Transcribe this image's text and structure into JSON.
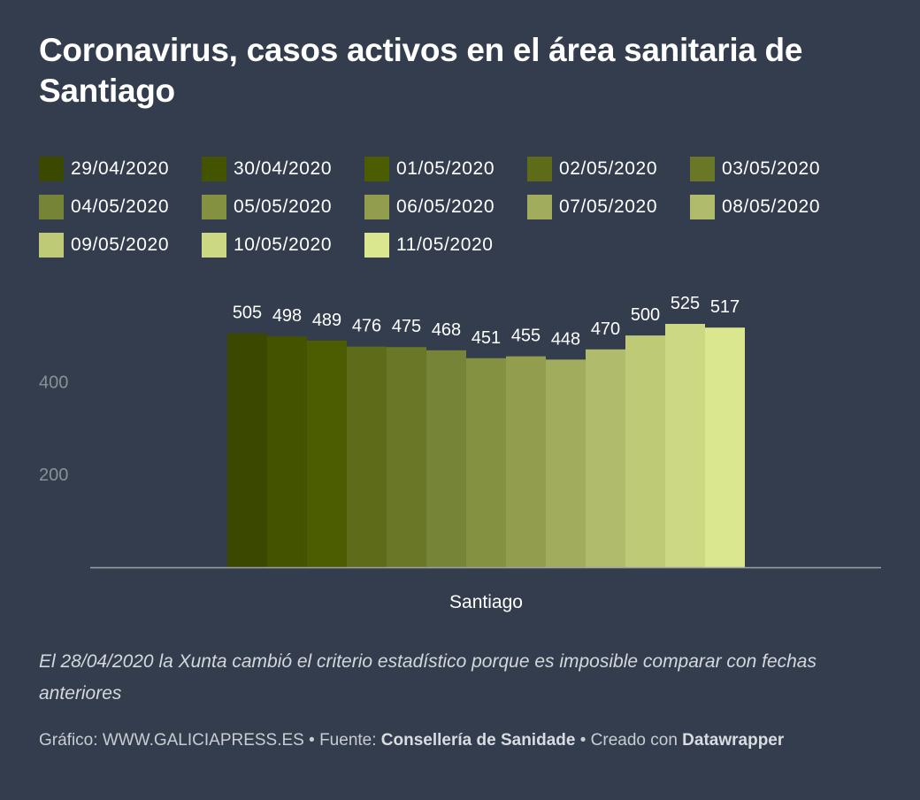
{
  "chart_data": {
    "type": "bar",
    "title": "Coronavirus, casos activos en el área sanitaria de Santiago",
    "categories": [
      "Santiago"
    ],
    "series": [
      {
        "name": "29/04/2020",
        "values": [
          505
        ],
        "color": "#3a4800"
      },
      {
        "name": "30/04/2020",
        "values": [
          498
        ],
        "color": "#435300"
      },
      {
        "name": "01/05/2020",
        "values": [
          489
        ],
        "color": "#4c5c00"
      },
      {
        "name": "02/05/2020",
        "values": [
          476
        ],
        "color": "#5e6b18"
      },
      {
        "name": "03/05/2020",
        "values": [
          475
        ],
        "color": "#6a7726"
      },
      {
        "name": "04/05/2020",
        "values": [
          468
        ],
        "color": "#758436"
      },
      {
        "name": "05/05/2020",
        "values": [
          451
        ],
        "color": "#849140"
      },
      {
        "name": "06/05/2020",
        "values": [
          455
        ],
        "color": "#929d4e"
      },
      {
        "name": "07/05/2020",
        "values": [
          448
        ],
        "color": "#a1ad5c"
      },
      {
        "name": "08/05/2020",
        "values": [
          470
        ],
        "color": "#b0bb6b"
      },
      {
        "name": "09/05/2020",
        "values": [
          500
        ],
        "color": "#bfca76"
      },
      {
        "name": "10/05/2020",
        "values": [
          525
        ],
        "color": "#cdd882"
      },
      {
        "name": "11/05/2020",
        "values": [
          517
        ],
        "color": "#dae78e"
      }
    ],
    "y_ticks": [
      200,
      400
    ],
    "ylim": [
      0,
      525
    ],
    "xlabel": "",
    "ylabel": "",
    "legend_position": "top",
    "grid": false
  },
  "note": "El 28/04/2020 la Xunta cambió el criterio estadístico porque es imposible comparar con fechas anteriores",
  "footer": {
    "graphic_prefix": "Gráfico: ",
    "graphic_value": "WWW.GALICIAPRESS.ES",
    "separator1": " • ",
    "source_prefix": "Fuente: ",
    "source_value": "Consellería de Sanidade",
    "separator2": " • ",
    "created_prefix": "Creado con ",
    "created_value": "Datawrapper"
  }
}
